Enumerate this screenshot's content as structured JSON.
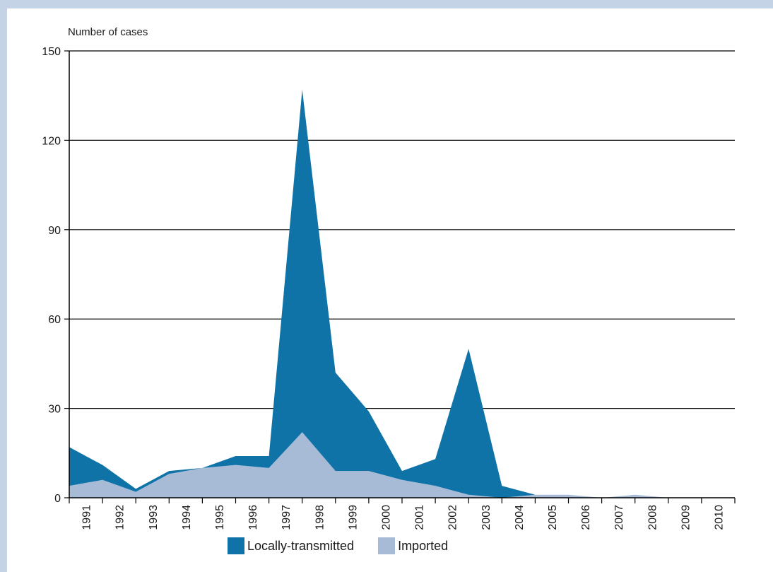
{
  "chart_data": {
    "type": "area",
    "stacked": true,
    "ylabel": "Number of cases",
    "xlabel": "",
    "ylim": [
      0,
      150
    ],
    "yticks": [
      0,
      30,
      60,
      90,
      120,
      150
    ],
    "grid": true,
    "legend_position": "bottom-center",
    "categories": [
      "1991",
      "1992",
      "1993",
      "1994",
      "1995",
      "1996",
      "1997",
      "1998",
      "1999",
      "2000",
      "2001",
      "2002",
      "2003",
      "2004",
      "2005",
      "2006",
      "2007",
      "2008",
      "2009",
      "2010"
    ],
    "series": [
      {
        "name": "Imported",
        "color": "#a7bad6",
        "values": [
          4,
          6,
          2,
          8,
          10,
          11,
          10,
          22,
          9,
          9,
          6,
          4,
          1,
          0,
          1,
          1,
          0,
          1,
          0,
          0
        ]
      },
      {
        "name": "Locally-transmitted",
        "color": "#0f73a8",
        "values": [
          13,
          5,
          1,
          1,
          0,
          3,
          4,
          115,
          33,
          20,
          3,
          9,
          49,
          4,
          0,
          0,
          0,
          0,
          0,
          0
        ]
      }
    ]
  },
  "legend": {
    "local_label": "Locally-transmitted",
    "imported_label": "Imported"
  }
}
